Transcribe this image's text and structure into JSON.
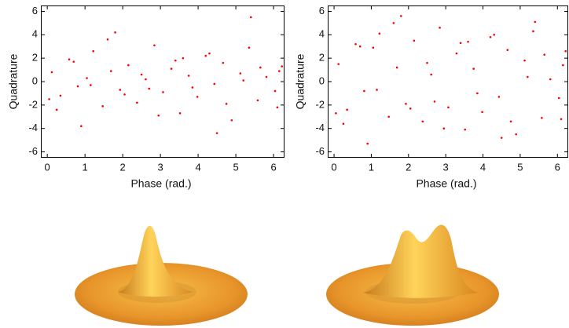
{
  "chart_data": [
    {
      "type": "scatter",
      "x_label": "Phase (rad.)",
      "y_label": "Quadrature",
      "color": "#ff0000",
      "xlim": [
        -0.17,
        6.29
      ],
      "ylim": [
        -6.5,
        6.5
      ],
      "xticks": [
        0,
        1,
        2,
        3,
        4,
        5,
        6
      ],
      "yticks": [
        -6,
        -4,
        -2,
        0,
        2,
        4,
        6
      ],
      "series": [
        {
          "x": [
            0.12,
            0.35,
            0.58,
            0.81,
            1.05,
            1.22,
            1.47,
            1.69,
            1.93,
            2.15,
            2.38,
            2.61,
            2.84,
            3.07,
            3.29,
            3.52,
            3.75,
            3.98,
            4.2,
            4.43,
            4.66,
            4.89,
            5.12,
            5.35,
            5.58,
            5.81,
            6.04,
            6.22,
            0.25,
            0.7,
            1.15,
            1.6,
            2.05,
            2.5,
            2.95,
            3.4,
            3.85,
            4.3,
            4.75,
            5.2,
            5.65,
            6.1,
            0.9,
            1.8,
            2.7,
            3.6,
            4.5,
            5.4,
            6.15,
            0.05
          ],
          "values": [
            0.8,
            -1.2,
            1.9,
            -0.4,
            0.3,
            2.6,
            -2.1,
            0.9,
            -0.7,
            1.4,
            -1.8,
            0.2,
            3.1,
            -0.9,
            1.1,
            -2.7,
            0.5,
            -1.3,
            2.2,
            -0.2,
            1.6,
            -3.3,
            0.7,
            2.9,
            -1.6,
            0.4,
            -0.8,
            1.3,
            -2.4,
            1.7,
            -0.3,
            3.6,
            -1.1,
            0.6,
            -2.9,
            1.8,
            -0.5,
            2.4,
            -1.9,
            0.1,
            1.2,
            -2.2,
            -3.8,
            4.2,
            -0.6,
            2.0,
            -4.4,
            5.5,
            0.9,
            -1.5
          ]
        }
      ]
    },
    {
      "type": "scatter",
      "x_label": "Phase (rad.)",
      "y_label": "Quadrature",
      "color": "#ff0000",
      "xlim": [
        -0.17,
        6.29
      ],
      "ylim": [
        -6.5,
        6.5
      ],
      "xticks": [
        0,
        1,
        2,
        3,
        4,
        5,
        6
      ],
      "yticks": [
        -6,
        -4,
        -2,
        0,
        2,
        4,
        6
      ],
      "series": [
        {
          "x": [
            0.12,
            0.35,
            0.58,
            0.81,
            1.05,
            1.22,
            1.47,
            1.69,
            1.93,
            2.15,
            2.38,
            2.61,
            2.84,
            3.07,
            3.29,
            3.52,
            3.75,
            3.98,
            4.2,
            4.43,
            4.66,
            4.89,
            5.12,
            5.35,
            5.58,
            5.81,
            6.04,
            6.22,
            0.25,
            0.7,
            1.15,
            1.6,
            2.05,
            2.5,
            2.95,
            3.4,
            3.85,
            4.3,
            4.75,
            5.2,
            5.65,
            6.1,
            0.9,
            1.8,
            2.7,
            3.6,
            4.5,
            5.4,
            6.15,
            0.05
          ],
          "values": [
            1.5,
            -2.4,
            3.2,
            -0.8,
            2.9,
            4.1,
            -3.0,
            1.2,
            -1.9,
            3.5,
            -3.4,
            0.6,
            4.6,
            -2.2,
            2.4,
            -4.1,
            1.1,
            -2.6,
            3.8,
            -1.3,
            2.7,
            -4.5,
            1.8,
            4.3,
            -3.1,
            0.2,
            -1.4,
            2.6,
            -3.6,
            3.0,
            -0.7,
            5.0,
            -2.3,
            1.6,
            -4.0,
            3.3,
            -1.0,
            4.0,
            -3.4,
            0.4,
            2.3,
            -3.2,
            -5.3,
            5.6,
            -1.7,
            3.4,
            -4.8,
            5.1,
            1.4,
            -2.7
          ]
        }
      ]
    }
  ]
}
